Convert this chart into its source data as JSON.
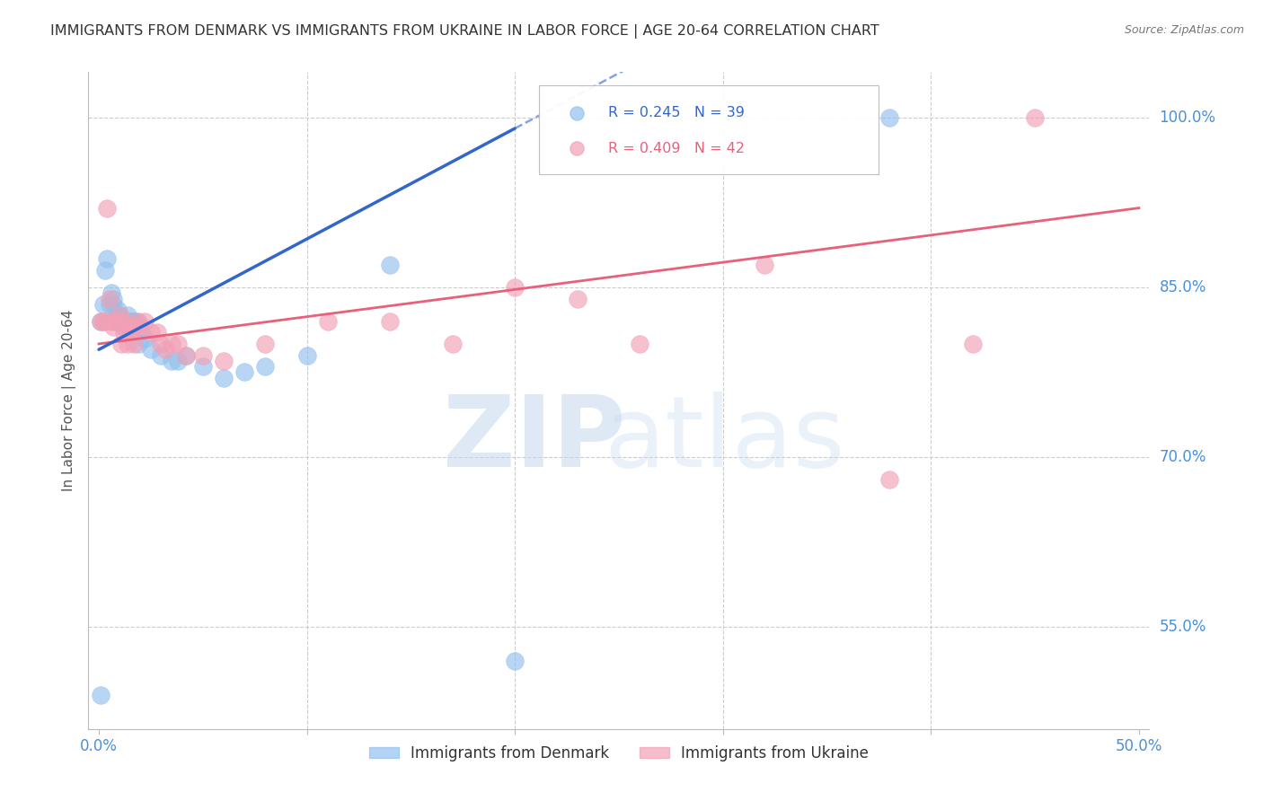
{
  "title": "IMMIGRANTS FROM DENMARK VS IMMIGRANTS FROM UKRAINE IN LABOR FORCE | AGE 20-64 CORRELATION CHART",
  "source": "Source: ZipAtlas.com",
  "ylabel": "In Labor Force | Age 20-64",
  "xlim": [
    0.0,
    0.5
  ],
  "ylim": [
    0.46,
    1.04
  ],
  "denmark_color": "#92C1EE",
  "ukraine_color": "#F2A0B5",
  "denmark_line_color": "#3366CC",
  "ukraine_line_color": "#E8607A",
  "denmark_R": 0.245,
  "denmark_N": 39,
  "ukraine_R": 0.409,
  "ukraine_N": 42,
  "legend_label_denmark": "Immigrants from Denmark",
  "legend_label_ukraine": "Immigrants from Ukraine",
  "background_color": "#FFFFFF",
  "grid_color": "#CCCCCC",
  "title_color": "#333333",
  "tick_label_color": "#4A90D9",
  "ylabel_color": "#555555",
  "ytick_show": [
    0.55,
    0.7,
    0.85,
    1.0
  ],
  "denmark_x": [
    0.001,
    0.002,
    0.003,
    0.004,
    0.005,
    0.006,
    0.007,
    0.007,
    0.008,
    0.008,
    0.009,
    0.01,
    0.01,
    0.011,
    0.012,
    0.013,
    0.014,
    0.015,
    0.015,
    0.016,
    0.017,
    0.018,
    0.019,
    0.02,
    0.022,
    0.025,
    0.03,
    0.035,
    0.038,
    0.042,
    0.05,
    0.06,
    0.07,
    0.08,
    0.1,
    0.14,
    0.2,
    0.38,
    0.001
  ],
  "denmark_y": [
    0.82,
    0.835,
    0.865,
    0.875,
    0.835,
    0.845,
    0.835,
    0.84,
    0.82,
    0.825,
    0.83,
    0.825,
    0.82,
    0.82,
    0.815,
    0.82,
    0.825,
    0.82,
    0.815,
    0.82,
    0.82,
    0.82,
    0.8,
    0.81,
    0.805,
    0.795,
    0.79,
    0.785,
    0.785,
    0.79,
    0.78,
    0.77,
    0.775,
    0.78,
    0.79,
    0.87,
    0.52,
    1.0,
    0.49
  ],
  "ukraine_x": [
    0.001,
    0.002,
    0.003,
    0.004,
    0.005,
    0.006,
    0.007,
    0.008,
    0.009,
    0.01,
    0.011,
    0.012,
    0.013,
    0.014,
    0.015,
    0.015,
    0.016,
    0.017,
    0.018,
    0.019,
    0.02,
    0.022,
    0.025,
    0.028,
    0.03,
    0.032,
    0.035,
    0.038,
    0.042,
    0.05,
    0.06,
    0.08,
    0.11,
    0.14,
    0.17,
    0.2,
    0.23,
    0.26,
    0.32,
    0.38,
    0.42,
    0.45
  ],
  "ukraine_y": [
    0.82,
    0.82,
    0.82,
    0.92,
    0.84,
    0.82,
    0.815,
    0.82,
    0.82,
    0.825,
    0.8,
    0.81,
    0.82,
    0.8,
    0.815,
    0.81,
    0.815,
    0.8,
    0.815,
    0.82,
    0.815,
    0.82,
    0.81,
    0.81,
    0.8,
    0.795,
    0.8,
    0.8,
    0.79,
    0.79,
    0.785,
    0.8,
    0.82,
    0.82,
    0.8,
    0.85,
    0.84,
    0.8,
    0.87,
    0.68,
    0.8,
    1.0
  ],
  "dk_line_x0": 0.0,
  "dk_line_y0": 0.795,
  "dk_line_x1": 0.21,
  "dk_line_y1": 1.0,
  "uk_line_x0": 0.0,
  "uk_line_y0": 0.8,
  "uk_line_x1": 0.5,
  "uk_line_y1": 0.92
}
